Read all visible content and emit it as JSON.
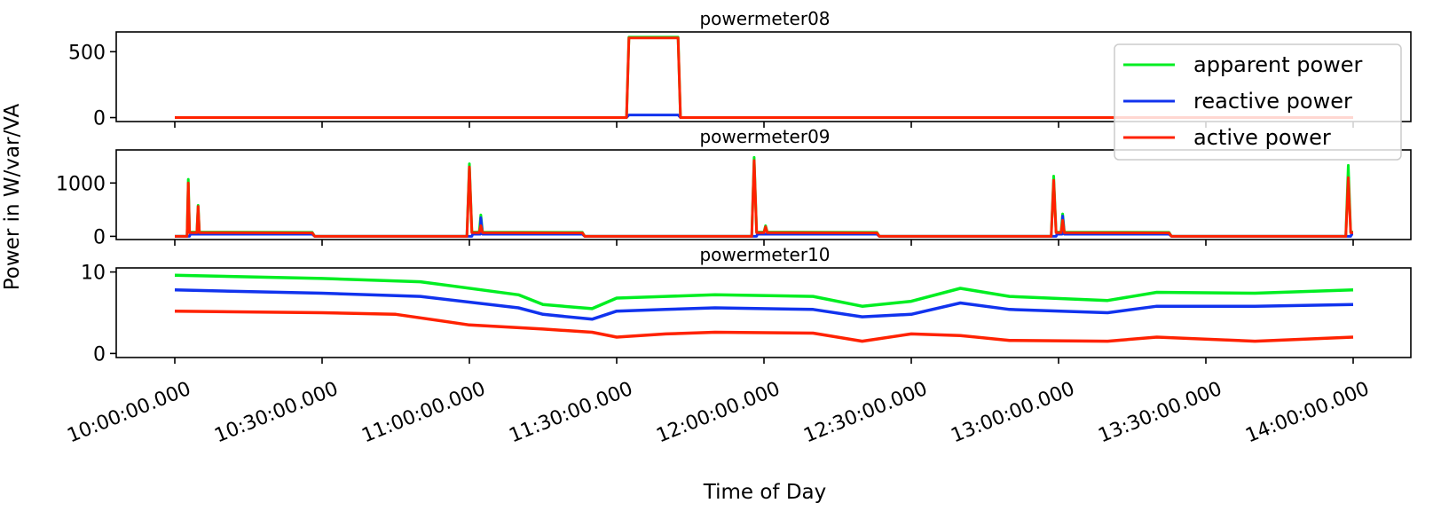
{
  "chart_data": {
    "type": "line",
    "xlabel": "Time of Day",
    "ylabel": "Power in W/var/VA",
    "x_ticks": [
      "10:00:00.000",
      "10:30:00.000",
      "11:00:00.000",
      "11:30:00.000",
      "12:00:00.000",
      "12:30:00.000",
      "13:00:00.000",
      "13:30:00.000",
      "14:00:00.000"
    ],
    "x_range": [
      "10:00:00",
      "14:00:00"
    ],
    "legend": {
      "placement": "top-right",
      "entries": [
        {
          "name": "apparent power",
          "color": "#00ee22"
        },
        {
          "name": "reactive power",
          "color": "#1133ee"
        },
        {
          "name": "active power",
          "color": "#ff2200"
        }
      ]
    },
    "panels": [
      {
        "title": "powermeter08",
        "ylim": [
          -30,
          650
        ],
        "yticks": [
          0,
          500
        ],
        "series": [
          {
            "name": "apparent power",
            "color": "#00ee22",
            "points": [
              [
                "10:00:00",
                0
              ],
              [
                "11:32:00",
                0
              ],
              [
                "11:32:30",
                610
              ],
              [
                "11:42:30",
                610
              ],
              [
                "11:43:00",
                0
              ],
              [
                "14:00:00",
                0
              ]
            ]
          },
          {
            "name": "reactive power",
            "color": "#1133ee",
            "points": [
              [
                "10:00:00",
                0
              ],
              [
                "11:32:00",
                0
              ],
              [
                "11:32:30",
                20
              ],
              [
                "11:42:30",
                20
              ],
              [
                "11:43:00",
                0
              ],
              [
                "14:00:00",
                0
              ]
            ]
          },
          {
            "name": "active power",
            "color": "#ff2200",
            "points": [
              [
                "10:00:00",
                0
              ],
              [
                "11:32:00",
                0
              ],
              [
                "11:32:30",
                605
              ],
              [
                "11:42:30",
                605
              ],
              [
                "11:43:00",
                0
              ],
              [
                "14:00:00",
                0
              ]
            ]
          }
        ]
      },
      {
        "title": "powermeter09",
        "ylim": [
          -60,
          1620
        ],
        "yticks": [
          0,
          1000
        ],
        "series": [
          {
            "name": "apparent power",
            "color": "#00ee22",
            "points": [
              [
                "10:00:00",
                0
              ],
              [
                "10:02:30",
                0
              ],
              [
                "10:02:45",
                1070
              ],
              [
                "10:03:00",
                80
              ],
              [
                "10:04:30",
                80
              ],
              [
                "10:04:45",
                580
              ],
              [
                "10:05:00",
                80
              ],
              [
                "10:28:00",
                75
              ],
              [
                "10:28:30",
                0
              ],
              [
                "10:59:30",
                0
              ],
              [
                "11:00:00",
                1360
              ],
              [
                "11:00:30",
                80
              ],
              [
                "11:02:00",
                80
              ],
              [
                "11:02:20",
                400
              ],
              [
                "11:02:40",
                80
              ],
              [
                "11:23:00",
                75
              ],
              [
                "11:23:30",
                0
              ],
              [
                "11:57:30",
                0
              ],
              [
                "11:58:00",
                1480
              ],
              [
                "11:58:30",
                80
              ],
              [
                "12:00:00",
                80
              ],
              [
                "12:00:20",
                200
              ],
              [
                "12:00:40",
                80
              ],
              [
                "12:23:00",
                75
              ],
              [
                "12:23:30",
                0
              ],
              [
                "12:58:30",
                0
              ],
              [
                "12:59:00",
                1130
              ],
              [
                "12:59:30",
                80
              ],
              [
                "13:00:30",
                80
              ],
              [
                "13:00:50",
                420
              ],
              [
                "13:01:10",
                80
              ],
              [
                "13:22:30",
                75
              ],
              [
                "13:23:00",
                0
              ],
              [
                "13:58:30",
                0
              ],
              [
                "13:59:00",
                1330
              ],
              [
                "13:59:30",
                80
              ],
              [
                "14:00:00",
                80
              ]
            ]
          },
          {
            "name": "reactive power",
            "color": "#1133ee",
            "points": [
              [
                "10:00:00",
                0
              ],
              [
                "10:03:00",
                0
              ],
              [
                "10:03:10",
                40
              ],
              [
                "10:28:00",
                40
              ],
              [
                "10:28:30",
                0
              ],
              [
                "11:00:30",
                0
              ],
              [
                "11:00:40",
                40
              ],
              [
                "11:02:10",
                40
              ],
              [
                "11:02:20",
                350
              ],
              [
                "11:02:40",
                40
              ],
              [
                "11:23:00",
                40
              ],
              [
                "11:23:30",
                0
              ],
              [
                "11:58:30",
                0
              ],
              [
                "11:58:40",
                40
              ],
              [
                "12:23:00",
                40
              ],
              [
                "12:23:30",
                0
              ],
              [
                "12:59:30",
                0
              ],
              [
                "12:59:40",
                40
              ],
              [
                "13:00:40",
                40
              ],
              [
                "13:00:50",
                380
              ],
              [
                "13:01:10",
                40
              ],
              [
                "13:22:30",
                40
              ],
              [
                "13:23:00",
                0
              ],
              [
                "13:59:30",
                0
              ],
              [
                "13:59:40",
                40
              ],
              [
                "14:00:00",
                40
              ]
            ]
          },
          {
            "name": "active power",
            "color": "#ff2200",
            "points": [
              [
                "10:00:00",
                0
              ],
              [
                "10:02:30",
                0
              ],
              [
                "10:02:45",
                1000
              ],
              [
                "10:03:00",
                70
              ],
              [
                "10:04:30",
                70
              ],
              [
                "10:04:45",
                560
              ],
              [
                "10:05:00",
                70
              ],
              [
                "10:28:00",
                65
              ],
              [
                "10:28:30",
                0
              ],
              [
                "10:59:30",
                0
              ],
              [
                "11:00:00",
                1300
              ],
              [
                "11:00:30",
                70
              ],
              [
                "11:02:00",
                70
              ],
              [
                "11:02:20",
                200
              ],
              [
                "11:02:40",
                70
              ],
              [
                "11:23:00",
                65
              ],
              [
                "11:23:30",
                0
              ],
              [
                "11:57:30",
                0
              ],
              [
                "11:58:00",
                1420
              ],
              [
                "11:58:30",
                70
              ],
              [
                "12:00:00",
                70
              ],
              [
                "12:00:20",
                180
              ],
              [
                "12:00:40",
                70
              ],
              [
                "12:23:00",
                65
              ],
              [
                "12:23:30",
                0
              ],
              [
                "12:58:30",
                0
              ],
              [
                "12:59:00",
                1050
              ],
              [
                "12:59:30",
                70
              ],
              [
                "13:00:30",
                70
              ],
              [
                "13:00:50",
                300
              ],
              [
                "13:01:10",
                70
              ],
              [
                "13:22:30",
                65
              ],
              [
                "13:23:00",
                0
              ],
              [
                "13:58:30",
                0
              ],
              [
                "13:59:00",
                1100
              ],
              [
                "13:59:30",
                70
              ],
              [
                "14:00:00",
                70
              ]
            ]
          }
        ]
      },
      {
        "title": "powermeter10",
        "ylim": [
          -0.5,
          10.5
        ],
        "yticks": [
          0,
          10
        ],
        "series": [
          {
            "name": "apparent power",
            "color": "#00ee22",
            "points": [
              [
                "10:00:00",
                9.6
              ],
              [
                "10:30:00",
                9.2
              ],
              [
                "10:50:00",
                8.8
              ],
              [
                "11:10:00",
                7.2
              ],
              [
                "11:15:00",
                6.0
              ],
              [
                "11:25:00",
                5.5
              ],
              [
                "11:30:00",
                6.8
              ],
              [
                "11:40:00",
                7.0
              ],
              [
                "11:50:00",
                7.2
              ],
              [
                "12:10:00",
                7.0
              ],
              [
                "12:20:00",
                5.8
              ],
              [
                "12:30:00",
                6.4
              ],
              [
                "12:40:00",
                8.0
              ],
              [
                "12:50:00",
                7.0
              ],
              [
                "13:10:00",
                6.5
              ],
              [
                "13:20:00",
                7.5
              ],
              [
                "13:40:00",
                7.4
              ],
              [
                "14:00:00",
                7.8
              ]
            ]
          },
          {
            "name": "reactive power",
            "color": "#1133ee",
            "points": [
              [
                "10:00:00",
                7.8
              ],
              [
                "10:30:00",
                7.4
              ],
              [
                "10:50:00",
                7.0
              ],
              [
                "11:10:00",
                5.6
              ],
              [
                "11:15:00",
                4.8
              ],
              [
                "11:25:00",
                4.2
              ],
              [
                "11:30:00",
                5.2
              ],
              [
                "11:40:00",
                5.4
              ],
              [
                "11:50:00",
                5.6
              ],
              [
                "12:10:00",
                5.4
              ],
              [
                "12:20:00",
                4.5
              ],
              [
                "12:30:00",
                4.8
              ],
              [
                "12:40:00",
                6.2
              ],
              [
                "12:50:00",
                5.4
              ],
              [
                "13:10:00",
                5.0
              ],
              [
                "13:20:00",
                5.8
              ],
              [
                "13:40:00",
                5.8
              ],
              [
                "14:00:00",
                6.0
              ]
            ]
          },
          {
            "name": "active power",
            "color": "#ff2200",
            "points": [
              [
                "10:00:00",
                5.2
              ],
              [
                "10:30:00",
                5.0
              ],
              [
                "10:45:00",
                4.8
              ],
              [
                "11:00:00",
                3.5
              ],
              [
                "11:15:00",
                3.0
              ],
              [
                "11:25:00",
                2.6
              ],
              [
                "11:30:00",
                2.0
              ],
              [
                "11:40:00",
                2.4
              ],
              [
                "11:50:00",
                2.6
              ],
              [
                "12:10:00",
                2.5
              ],
              [
                "12:20:00",
                1.5
              ],
              [
                "12:30:00",
                2.4
              ],
              [
                "12:40:00",
                2.2
              ],
              [
                "12:50:00",
                1.6
              ],
              [
                "13:10:00",
                1.5
              ],
              [
                "13:20:00",
                2.0
              ],
              [
                "13:40:00",
                1.5
              ],
              [
                "14:00:00",
                2.0
              ]
            ]
          }
        ]
      }
    ]
  }
}
